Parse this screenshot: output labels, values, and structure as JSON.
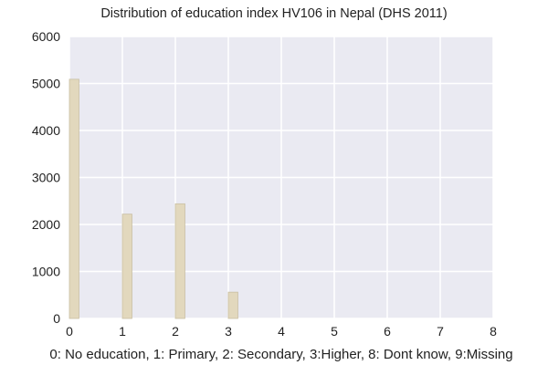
{
  "chart_data": {
    "type": "bar",
    "title": "Distribution of education index HV106 in Nepal (DHS 2011)",
    "xlabel": "0: No education, 1: Primary, 2: Secondary, 3:Higher, 8: Dont know, 9:Missing",
    "ylabel": "",
    "xlim": [
      0,
      8
    ],
    "ylim": [
      0,
      6000
    ],
    "xticks": [
      0,
      1,
      2,
      3,
      4,
      5,
      6,
      7,
      8
    ],
    "yticks": [
      0,
      1000,
      2000,
      3000,
      4000,
      5000,
      6000
    ],
    "x": [
      0,
      1,
      2,
      3
    ],
    "values": [
      5090,
      2220,
      2440,
      560
    ],
    "grid": true,
    "legend": "none",
    "colors": {
      "plot_background": "#eaeaf2",
      "gridline": "#ffffff",
      "bar_fill": "#e2d8bd",
      "bar_edge": "#c9bfa3"
    }
  }
}
